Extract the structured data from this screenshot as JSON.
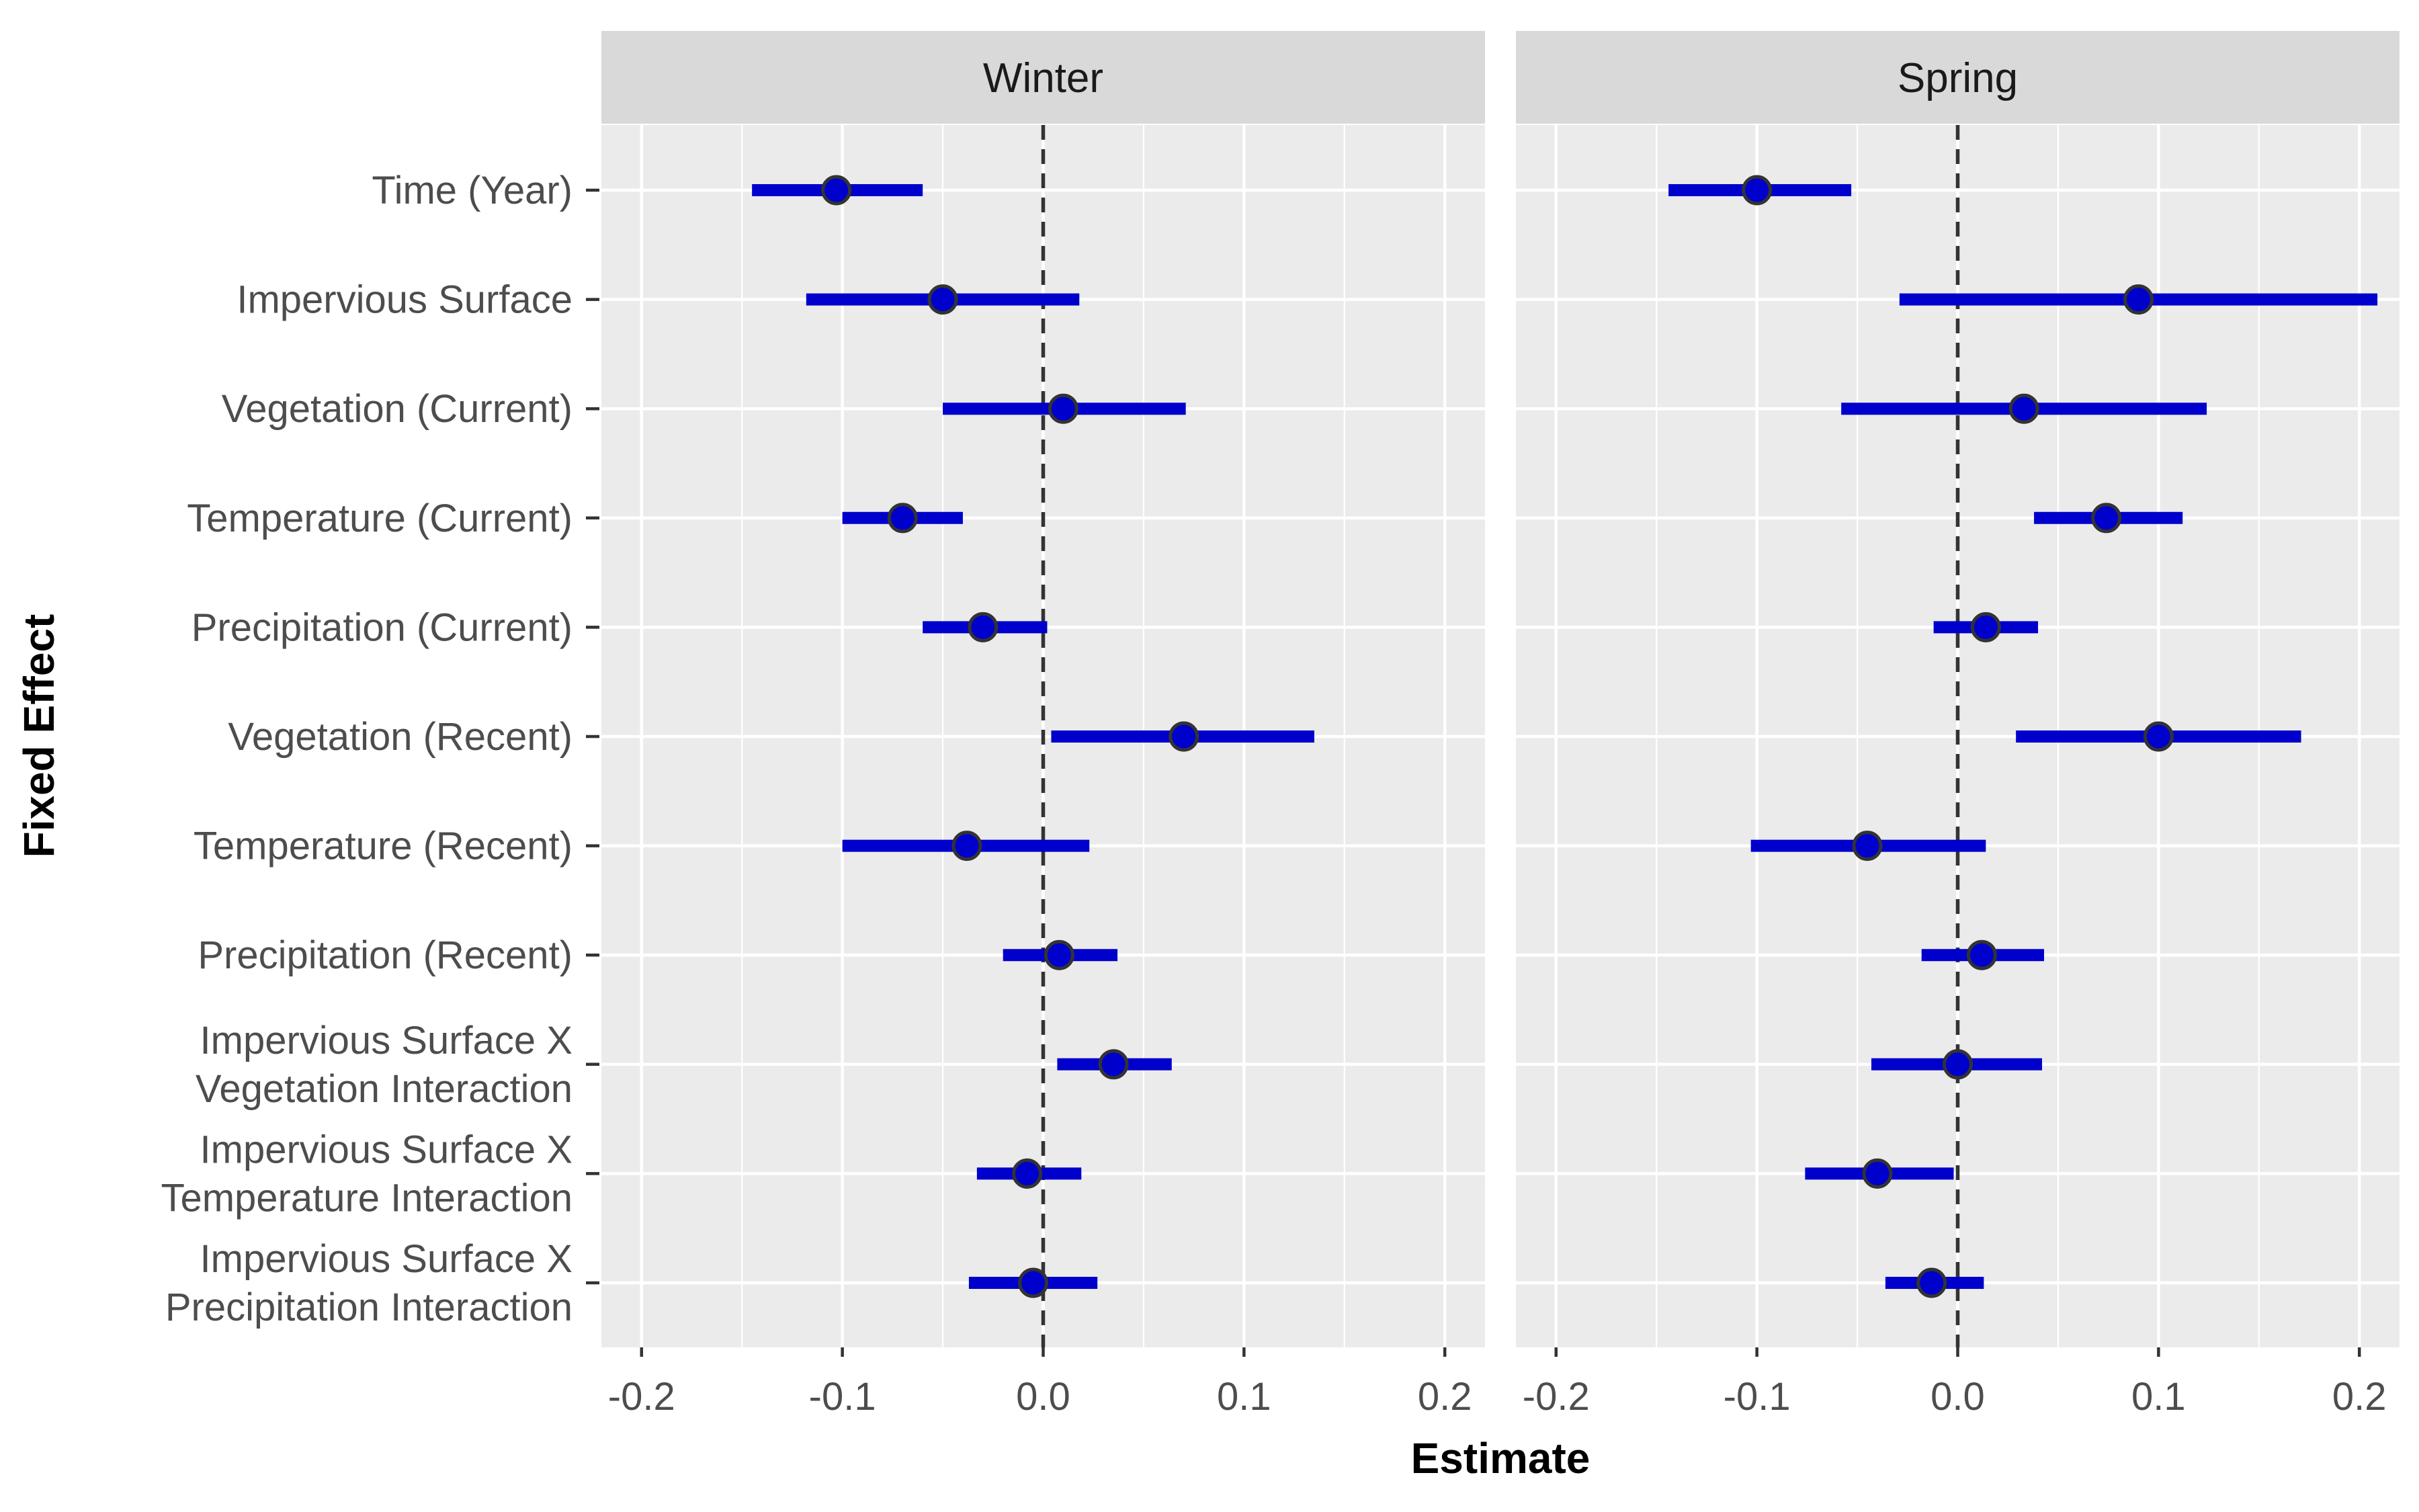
{
  "chart_data": {
    "type": "forest",
    "ylabel": "Fixed Effect",
    "xlabel": "Estimate",
    "xlim": [
      -0.22,
      0.22
    ],
    "xticks": [
      -0.2,
      -0.1,
      0.0,
      0.1,
      0.2
    ],
    "xtick_labels": [
      "-0.2",
      "-0.1",
      "0.0",
      "0.1",
      "0.2"
    ],
    "reference_line": 0,
    "grid": true,
    "colors": {
      "interval": "#0000CC",
      "point_fill": "#0000CC",
      "point_stroke": "#333333",
      "panel_bg": "#EBEBEB",
      "strip_bg": "#D9D9D9",
      "grid": "#FFFFFF"
    },
    "effects": [
      [
        "Time (Year)"
      ],
      [
        "Impervious Surface"
      ],
      [
        "Vegetation (Current)"
      ],
      [
        "Temperature (Current)"
      ],
      [
        "Precipitation (Current)"
      ],
      [
        "Vegetation (Recent)"
      ],
      [
        "Temperature (Recent)"
      ],
      [
        "Precipitation (Recent)"
      ],
      [
        "Impervious Surface X",
        "Vegetation Interaction"
      ],
      [
        "Impervious Surface X",
        "Temperature Interaction"
      ],
      [
        "Impervious Surface X",
        "Precipitation Interaction"
      ]
    ],
    "panels": [
      {
        "title": "Winter",
        "estimates": [
          -0.103,
          -0.05,
          0.01,
          -0.07,
          -0.03,
          0.07,
          -0.038,
          0.008,
          0.035,
          -0.008,
          -0.005
        ],
        "lower": [
          -0.145,
          -0.118,
          -0.05,
          -0.1,
          -0.06,
          0.004,
          -0.1,
          -0.02,
          0.007,
          -0.033,
          -0.037
        ],
        "upper": [
          -0.06,
          0.018,
          0.071,
          -0.04,
          0.002,
          0.135,
          0.023,
          0.037,
          0.064,
          0.019,
          0.027
        ]
      },
      {
        "title": "Spring",
        "estimates": [
          -0.1,
          0.09,
          0.033,
          0.074,
          0.014,
          0.1,
          -0.045,
          0.012,
          0.0,
          -0.04,
          -0.013
        ],
        "lower": [
          -0.144,
          -0.029,
          -0.058,
          0.038,
          -0.012,
          0.029,
          -0.103,
          -0.018,
          -0.043,
          -0.076,
          -0.036
        ],
        "upper": [
          -0.053,
          0.209,
          0.124,
          0.112,
          0.04,
          0.171,
          0.014,
          0.043,
          0.042,
          -0.002,
          0.013
        ]
      }
    ]
  }
}
